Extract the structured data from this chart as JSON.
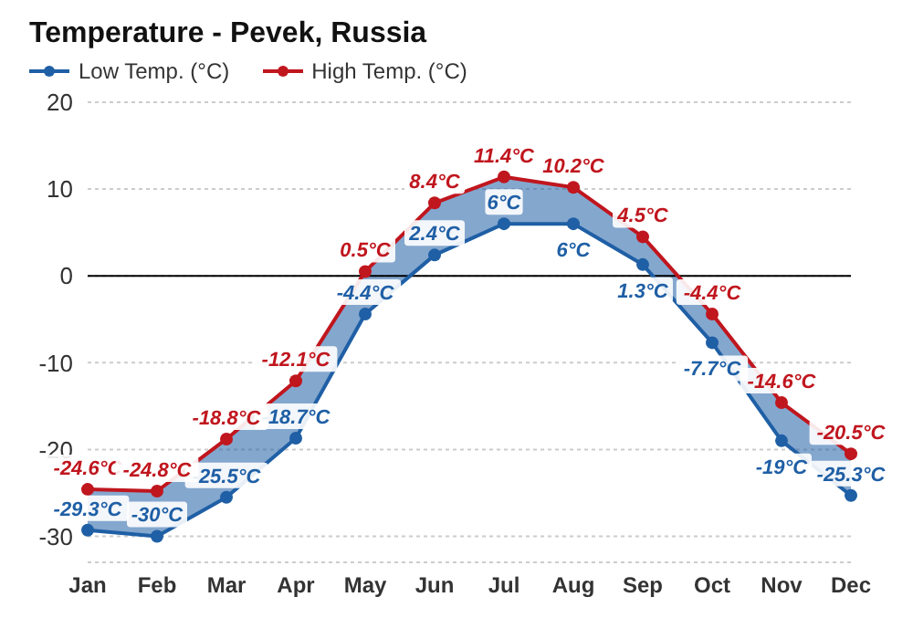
{
  "chart_data": {
    "type": "line",
    "title": "Temperature - Pevek, Russia",
    "categories": [
      "Jan",
      "Feb",
      "Mar",
      "Apr",
      "May",
      "Jun",
      "Jul",
      "Aug",
      "Sep",
      "Oct",
      "Nov",
      "Dec"
    ],
    "series": [
      {
        "name": "Low Temp. (°C)",
        "color": "#1f5fa5",
        "values": [
          -29.3,
          -30,
          -25.5,
          -18.7,
          -4.4,
          2.4,
          6,
          6,
          1.3,
          -7.7,
          -19,
          -25.3
        ],
        "value_labels": [
          "-29.3°C",
          "-30°C",
          "-25.5°C",
          "-18.7°C",
          "-4.4°C",
          "2.4°C",
          "6°C",
          "6°C",
          "1.3°C",
          "-7.7°C",
          "-19°C",
          "-25.3°C"
        ]
      },
      {
        "name": "High Temp. (°C)",
        "color": "#c0161e",
        "values": [
          -24.6,
          -24.8,
          -18.8,
          -12.1,
          0.5,
          8.4,
          11.4,
          10.2,
          4.5,
          -4.4,
          -14.6,
          -20.5
        ],
        "value_labels": [
          "-24.6°C",
          "-24.8°C",
          "-18.8°C",
          "-12.1°C",
          "0.5°C",
          "8.4°C",
          "11.4°C",
          "10.2°C",
          "4.5°C",
          "-4.4°C",
          "-14.6°C",
          "-20.5°C"
        ]
      }
    ],
    "ylim": [
      -33,
      20
    ],
    "yticks": [
      -30,
      -20,
      -10,
      0,
      10,
      20
    ],
    "grid": "y",
    "legend": "top left",
    "marker": "circle",
    "line_style": "solid",
    "ref_lines": [
      {
        "axis": "y",
        "value": 0,
        "color": "#000000"
      }
    ]
  }
}
